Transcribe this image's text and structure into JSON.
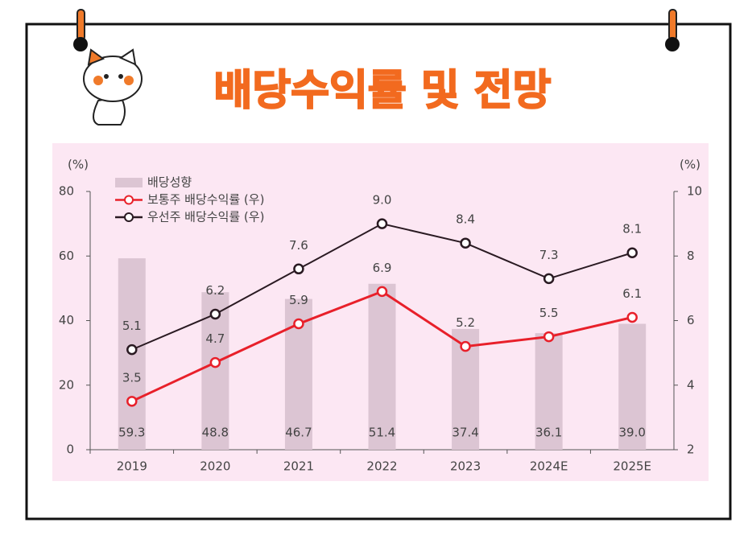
{
  "chart_data": {
    "type": "bar",
    "title": "배당수익률 및 전망",
    "y_label": "(%)",
    "y2_label": "(%)",
    "categories": [
      "2019",
      "2020",
      "2021",
      "2022",
      "2023",
      "2024E",
      "2025E"
    ],
    "series": [
      {
        "name": "배당성향",
        "type": "bar",
        "color": "#dcc5d3",
        "values": [
          59.3,
          48.8,
          46.7,
          51.4,
          37.4,
          36.1,
          39.0
        ],
        "value_labels": [
          "59.3",
          "48.8",
          "46.7",
          "51.4",
          "37.4",
          "36.1",
          "39.0"
        ]
      },
      {
        "name": "보통주 배당수익률 (우)",
        "type": "line",
        "axis": "y2",
        "color": "#e8202a",
        "values": [
          3.5,
          4.7,
          5.9,
          6.9,
          5.2,
          5.5,
          6.1
        ],
        "value_labels": [
          "3.5",
          "4.7",
          "5.9",
          "6.9",
          "5.2",
          "5.5",
          "6.1"
        ]
      },
      {
        "name": "우선주 배당수익률 (우)",
        "type": "line",
        "axis": "y2",
        "color": "#2a1a22",
        "values": [
          5.1,
          6.2,
          7.6,
          9.0,
          8.4,
          7.3,
          8.1
        ],
        "value_labels": [
          "5.1",
          "6.2",
          "7.6",
          "9.0",
          "8.4",
          "7.3",
          "8.1"
        ]
      }
    ],
    "ylim": [
      0,
      80
    ],
    "yticks": [
      0,
      20,
      40,
      60,
      80
    ],
    "y2lim": [
      2,
      10
    ],
    "y2ticks": [
      2,
      4,
      6,
      8,
      10
    ],
    "grid": false,
    "legend": "top-left"
  }
}
